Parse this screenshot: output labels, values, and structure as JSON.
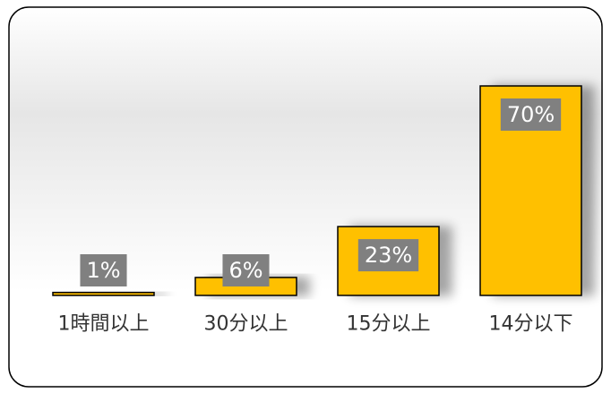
{
  "chart_data": {
    "type": "bar",
    "categories": [
      "1時間以上",
      "30分以上",
      "15分以上",
      "14分以下"
    ],
    "values": [
      1,
      6,
      23,
      70
    ],
    "value_labels": [
      "1%",
      "6%",
      "23%",
      "70%"
    ],
    "color": "#ffc000"
  }
}
